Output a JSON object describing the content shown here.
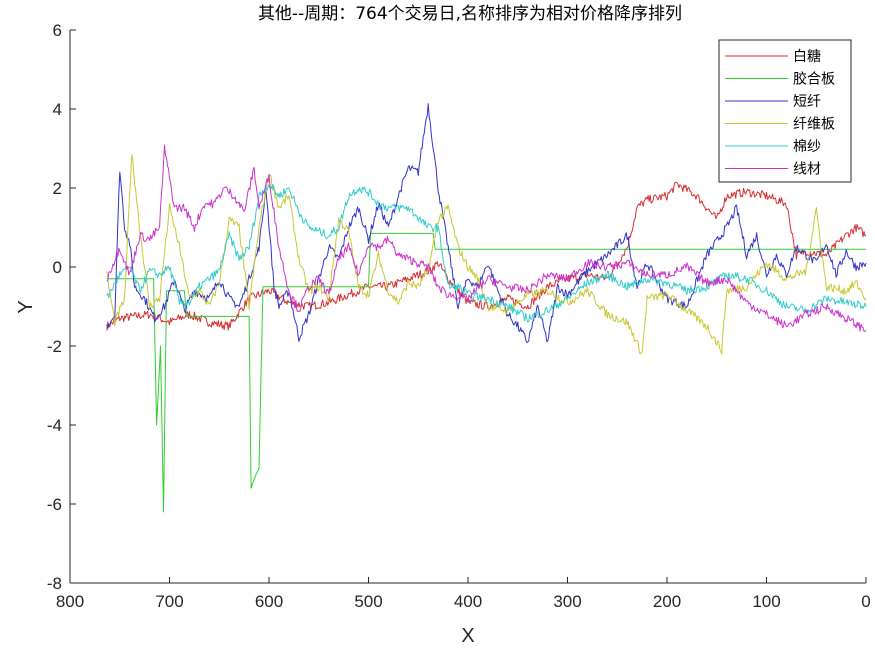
{
  "chart_data": {
    "type": "line",
    "title": "其他--周期：764个交易日,名称排序为相对价格降序排列",
    "xlabel": "X",
    "ylabel": "Y",
    "xlim": [
      800,
      0
    ],
    "ylim": [
      -8,
      6
    ],
    "x_reversed": true,
    "xticks": [
      800,
      700,
      600,
      500,
      400,
      300,
      200,
      100,
      0
    ],
    "yticks": [
      -8,
      -6,
      -4,
      -2,
      0,
      2,
      4,
      6
    ],
    "grid": false,
    "legend_position": "top-right",
    "series": [
      {
        "name": "白糖",
        "color": "#d62f2f",
        "points": [
          [
            763,
            -1.5
          ],
          [
            750,
            -1.3
          ],
          [
            720,
            -1.2
          ],
          [
            700,
            -1.4
          ],
          [
            680,
            -1.2
          ],
          [
            660,
            -1.4
          ],
          [
            640,
            -1.5
          ],
          [
            620,
            -0.8
          ],
          [
            600,
            -0.6
          ],
          [
            580,
            -0.9
          ],
          [
            560,
            -1.0
          ],
          [
            540,
            -0.9
          ],
          [
            520,
            -0.7
          ],
          [
            500,
            -0.5
          ],
          [
            480,
            -0.5
          ],
          [
            460,
            -0.3
          ],
          [
            440,
            -0.1
          ],
          [
            430,
            0.1
          ],
          [
            420,
            -0.3
          ],
          [
            400,
            -0.9
          ],
          [
            380,
            -1.0
          ],
          [
            360,
            -0.8
          ],
          [
            340,
            -1.0
          ],
          [
            320,
            -0.5
          ],
          [
            300,
            -0.3
          ],
          [
            280,
            -0.2
          ],
          [
            260,
            -0.3
          ],
          [
            240,
            0.5
          ],
          [
            230,
            1.5
          ],
          [
            220,
            1.7
          ],
          [
            200,
            1.8
          ],
          [
            190,
            2.1
          ],
          [
            170,
            1.8
          ],
          [
            150,
            1.2
          ],
          [
            140,
            1.8
          ],
          [
            120,
            1.9
          ],
          [
            100,
            1.8
          ],
          [
            80,
            1.6
          ],
          [
            70,
            0.3
          ],
          [
            60,
            0.4
          ],
          [
            40,
            0.3
          ],
          [
            20,
            0.8
          ],
          [
            10,
            1.0
          ],
          [
            0,
            0.8
          ]
        ]
      },
      {
        "name": "胶合板",
        "color": "#33cc33",
        "points": [
          [
            763,
            -0.3
          ],
          [
            716,
            -0.3
          ],
          [
            713,
            -4.0
          ],
          [
            709,
            -2.0
          ],
          [
            706,
            -6.2
          ],
          [
            703,
            -0.6
          ],
          [
            685,
            -0.6
          ],
          [
            683,
            -1.25
          ],
          [
            620,
            -1.25
          ],
          [
            618,
            -5.6
          ],
          [
            614,
            -5.3
          ],
          [
            610,
            -5.1
          ],
          [
            606,
            -0.5
          ],
          [
            500,
            -0.5
          ],
          [
            498,
            0.85
          ],
          [
            435,
            0.85
          ],
          [
            433,
            0.45
          ],
          [
            0,
            0.45
          ]
        ]
      },
      {
        "name": "短纤",
        "color": "#3333cc",
        "points": [
          [
            763,
            -1.5
          ],
          [
            755,
            -1.2
          ],
          [
            750,
            2.5
          ],
          [
            745,
            1.0
          ],
          [
            740,
            0.6
          ],
          [
            735,
            -0.5
          ],
          [
            725,
            -0.8
          ],
          [
            715,
            -1.3
          ],
          [
            705,
            -1.0
          ],
          [
            695,
            -0.3
          ],
          [
            685,
            -1.1
          ],
          [
            675,
            -0.6
          ],
          [
            660,
            -0.8
          ],
          [
            650,
            -0.3
          ],
          [
            640,
            -0.8
          ],
          [
            630,
            -1.0
          ],
          [
            620,
            -0.3
          ],
          [
            610,
            0.5
          ],
          [
            603,
            2.0
          ],
          [
            595,
            -0.5
          ],
          [
            590,
            -1.0
          ],
          [
            580,
            -0.6
          ],
          [
            570,
            -1.8
          ],
          [
            560,
            -1.2
          ],
          [
            550,
            -0.3
          ],
          [
            540,
            0.5
          ],
          [
            530,
            0.2
          ],
          [
            520,
            1.0
          ],
          [
            510,
            1.5
          ],
          [
            500,
            0.7
          ],
          [
            490,
            1.6
          ],
          [
            480,
            1.0
          ],
          [
            470,
            1.8
          ],
          [
            460,
            2.5
          ],
          [
            450,
            2.4
          ],
          [
            440,
            4.1
          ],
          [
            430,
            2.0
          ],
          [
            420,
            0.5
          ],
          [
            410,
            -1.0
          ],
          [
            400,
            -0.3
          ],
          [
            390,
            -0.5
          ],
          [
            380,
            0.1
          ],
          [
            370,
            -0.6
          ],
          [
            360,
            -1.2
          ],
          [
            350,
            -1.5
          ],
          [
            340,
            -1.9
          ],
          [
            330,
            -1.0
          ],
          [
            320,
            -1.9
          ],
          [
            310,
            -0.5
          ],
          [
            300,
            -0.7
          ],
          [
            280,
            -0.1
          ],
          [
            260,
            0.3
          ],
          [
            240,
            0.8
          ],
          [
            230,
            -0.5
          ],
          [
            220,
            0.1
          ],
          [
            200,
            -0.8
          ],
          [
            180,
            -1.0
          ],
          [
            160,
            0.3
          ],
          [
            140,
            1.0
          ],
          [
            130,
            1.5
          ],
          [
            120,
            0.3
          ],
          [
            110,
            0.8
          ],
          [
            100,
            -0.2
          ],
          [
            90,
            0.3
          ],
          [
            80,
            -0.2
          ],
          [
            70,
            0.5
          ],
          [
            50,
            0.1
          ],
          [
            40,
            0.6
          ],
          [
            30,
            -0.2
          ],
          [
            20,
            0.4
          ],
          [
            10,
            0.0
          ],
          [
            0,
            0.1
          ]
        ]
      },
      {
        "name": "纤维板",
        "color": "#c8c832",
        "points": [
          [
            763,
            -0.2
          ],
          [
            755,
            -1.4
          ],
          [
            745,
            -0.8
          ],
          [
            738,
            2.9
          ],
          [
            730,
            1.0
          ],
          [
            720,
            -1.0
          ],
          [
            710,
            -0.8
          ],
          [
            700,
            1.5
          ],
          [
            690,
            0.5
          ],
          [
            680,
            -0.8
          ],
          [
            670,
            -0.6
          ],
          [
            660,
            -1.0
          ],
          [
            650,
            -0.4
          ],
          [
            640,
            1.2
          ],
          [
            630,
            1.0
          ],
          [
            620,
            -1.0
          ],
          [
            610,
            1.0
          ],
          [
            600,
            2.4
          ],
          [
            590,
            1.5
          ],
          [
            580,
            1.8
          ],
          [
            570,
            0.2
          ],
          [
            560,
            -0.6
          ],
          [
            550,
            -0.5
          ],
          [
            540,
            -0.8
          ],
          [
            530,
            1.2
          ],
          [
            520,
            0.9
          ],
          [
            510,
            -0.5
          ],
          [
            500,
            -0.7
          ],
          [
            490,
            0.3
          ],
          [
            480,
            -0.6
          ],
          [
            470,
            -0.9
          ],
          [
            460,
            -0.4
          ],
          [
            450,
            -0.5
          ],
          [
            440,
            -0.1
          ],
          [
            430,
            1.2
          ],
          [
            420,
            1.5
          ],
          [
            410,
            0.5
          ],
          [
            400,
            0.0
          ],
          [
            390,
            -0.3
          ],
          [
            380,
            -1.0
          ],
          [
            360,
            -1.1
          ],
          [
            340,
            -0.7
          ],
          [
            320,
            -0.6
          ],
          [
            300,
            -0.9
          ],
          [
            280,
            -0.6
          ],
          [
            260,
            -1.2
          ],
          [
            240,
            -1.4
          ],
          [
            225,
            -2.2
          ],
          [
            220,
            -0.8
          ],
          [
            200,
            -0.7
          ],
          [
            180,
            -1.1
          ],
          [
            160,
            -1.5
          ],
          [
            145,
            -2.1
          ],
          [
            140,
            -0.6
          ],
          [
            120,
            -0.5
          ],
          [
            100,
            0.1
          ],
          [
            80,
            -0.3
          ],
          [
            60,
            -0.1
          ],
          [
            50,
            1.5
          ],
          [
            40,
            -0.5
          ],
          [
            20,
            -0.6
          ],
          [
            10,
            -0.4
          ],
          [
            0,
            -0.8
          ]
        ]
      },
      {
        "name": "棉纱",
        "color": "#33cccc",
        "points": [
          [
            763,
            -0.8
          ],
          [
            750,
            -0.2
          ],
          [
            740,
            0.0
          ],
          [
            730,
            -0.6
          ],
          [
            720,
            -0.1
          ],
          [
            710,
            -0.2
          ],
          [
            700,
            0.0
          ],
          [
            690,
            -0.9
          ],
          [
            680,
            -0.9
          ],
          [
            670,
            -0.5
          ],
          [
            660,
            -0.3
          ],
          [
            650,
            -0.1
          ],
          [
            640,
            0.8
          ],
          [
            630,
            0.2
          ],
          [
            620,
            0.5
          ],
          [
            610,
            1.8
          ],
          [
            600,
            2.1
          ],
          [
            590,
            1.8
          ],
          [
            580,
            2.0
          ],
          [
            570,
            1.4
          ],
          [
            560,
            1.0
          ],
          [
            550,
            0.9
          ],
          [
            540,
            0.8
          ],
          [
            530,
            1.0
          ],
          [
            520,
            1.8
          ],
          [
            510,
            2.0
          ],
          [
            500,
            1.9
          ],
          [
            490,
            1.6
          ],
          [
            480,
            1.5
          ],
          [
            470,
            1.5
          ],
          [
            460,
            1.5
          ],
          [
            440,
            1.0
          ],
          [
            430,
            1.0
          ],
          [
            420,
            -0.5
          ],
          [
            410,
            -0.5
          ],
          [
            400,
            -0.7
          ],
          [
            380,
            -0.8
          ],
          [
            360,
            -1.0
          ],
          [
            340,
            -1.3
          ],
          [
            320,
            -1.1
          ],
          [
            300,
            -0.8
          ],
          [
            280,
            -0.4
          ],
          [
            260,
            -0.2
          ],
          [
            240,
            -0.5
          ],
          [
            220,
            -0.3
          ],
          [
            200,
            -0.4
          ],
          [
            180,
            -0.6
          ],
          [
            160,
            -0.5
          ],
          [
            140,
            -0.2
          ],
          [
            120,
            -0.3
          ],
          [
            100,
            -0.6
          ],
          [
            80,
            -1.0
          ],
          [
            60,
            -1.1
          ],
          [
            40,
            -0.8
          ],
          [
            20,
            -0.9
          ],
          [
            0,
            -1.0
          ]
        ]
      },
      {
        "name": "线材",
        "color": "#cc33cc",
        "points": [
          [
            763,
            -0.3
          ],
          [
            750,
            0.5
          ],
          [
            740,
            -0.2
          ],
          [
            730,
            0.8
          ],
          [
            720,
            0.7
          ],
          [
            710,
            1.0
          ],
          [
            705,
            3.0
          ],
          [
            695,
            1.5
          ],
          [
            685,
            1.5
          ],
          [
            675,
            1.0
          ],
          [
            665,
            1.6
          ],
          [
            655,
            1.6
          ],
          [
            645,
            2.0
          ],
          [
            635,
            1.8
          ],
          [
            625,
            1.4
          ],
          [
            615,
            2.5
          ],
          [
            610,
            1.5
          ],
          [
            600,
            2.3
          ],
          [
            590,
            0.5
          ],
          [
            580,
            -0.6
          ],
          [
            570,
            -1.1
          ],
          [
            560,
            -0.5
          ],
          [
            550,
            -0.3
          ],
          [
            540,
            -0.7
          ],
          [
            530,
            0.2
          ],
          [
            520,
            0.5
          ],
          [
            510,
            -0.2
          ],
          [
            500,
            0.6
          ],
          [
            490,
            0.5
          ],
          [
            480,
            0.7
          ],
          [
            470,
            0.3
          ],
          [
            460,
            0.2
          ],
          [
            440,
            0.0
          ],
          [
            430,
            -0.5
          ],
          [
            420,
            -0.7
          ],
          [
            400,
            -0.8
          ],
          [
            380,
            -0.3
          ],
          [
            360,
            -0.5
          ],
          [
            340,
            -0.6
          ],
          [
            320,
            -0.2
          ],
          [
            300,
            -0.3
          ],
          [
            280,
            0.1
          ],
          [
            260,
            0.0
          ],
          [
            240,
            0.1
          ],
          [
            220,
            -0.2
          ],
          [
            200,
            -0.2
          ],
          [
            180,
            0.0
          ],
          [
            160,
            -0.4
          ],
          [
            140,
            -0.3
          ],
          [
            120,
            -0.9
          ],
          [
            100,
            -1.2
          ],
          [
            80,
            -1.5
          ],
          [
            60,
            -1.2
          ],
          [
            40,
            -1.0
          ],
          [
            20,
            -1.3
          ],
          [
            0,
            -1.6
          ]
        ]
      }
    ]
  }
}
